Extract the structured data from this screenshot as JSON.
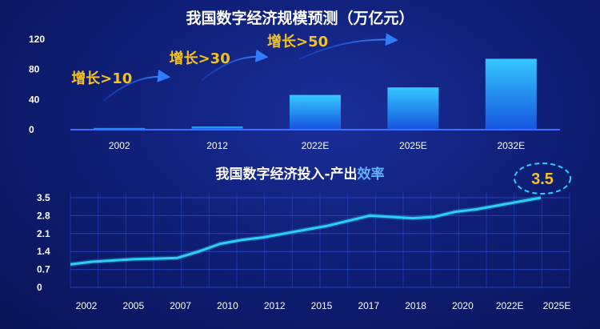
{
  "chart_data": [
    {
      "type": "bar",
      "title": "我国数字经济规模预测（万亿元）",
      "categories": [
        "2002",
        "2012",
        "2022E",
        "2025E",
        "2032E"
      ],
      "values": [
        1.2,
        3,
        45,
        55,
        93
      ],
      "ylim": [
        0,
        120
      ],
      "yticks": [
        "0",
        "40",
        "80",
        "120"
      ],
      "annotations": [
        {
          "text": "增长>10",
          "color": "#f5c21b"
        },
        {
          "text": "增长>30",
          "color": "#f5c21b"
        },
        {
          "text": "增长>50",
          "color": "#f5c21b"
        }
      ],
      "bar_color_top": "#35c8ff",
      "bar_color_bottom": "#1655e0"
    },
    {
      "type": "line",
      "title": "我国数字经济投入-产出效率",
      "xlabels": [
        "2002",
        "2005",
        "2007",
        "2010",
        "2012",
        "2015",
        "2017",
        "2018",
        "2020",
        "2022E",
        "2025E"
      ],
      "yticks": [
        "0",
        "0.7",
        "1.4",
        "2.1",
        "2.8",
        "3.5"
      ],
      "ylim": [
        0,
        3.5
      ],
      "x": [
        2002,
        2003,
        2004,
        2005,
        2006,
        2007,
        2008,
        2009,
        2010,
        2011,
        2012,
        2013,
        2014,
        2015,
        2016,
        2017,
        2018,
        2019,
        2020,
        2021,
        2022,
        2023,
        2024
      ],
      "y": [
        0.9,
        1.0,
        1.05,
        1.1,
        1.12,
        1.15,
        1.4,
        1.7,
        1.85,
        1.95,
        2.1,
        2.25,
        2.4,
        2.6,
        2.8,
        2.75,
        2.7,
        2.75,
        2.95,
        3.05,
        3.2,
        3.35,
        3.5
      ],
      "label": "3.5",
      "line_color": "#2ad0f5"
    }
  ]
}
